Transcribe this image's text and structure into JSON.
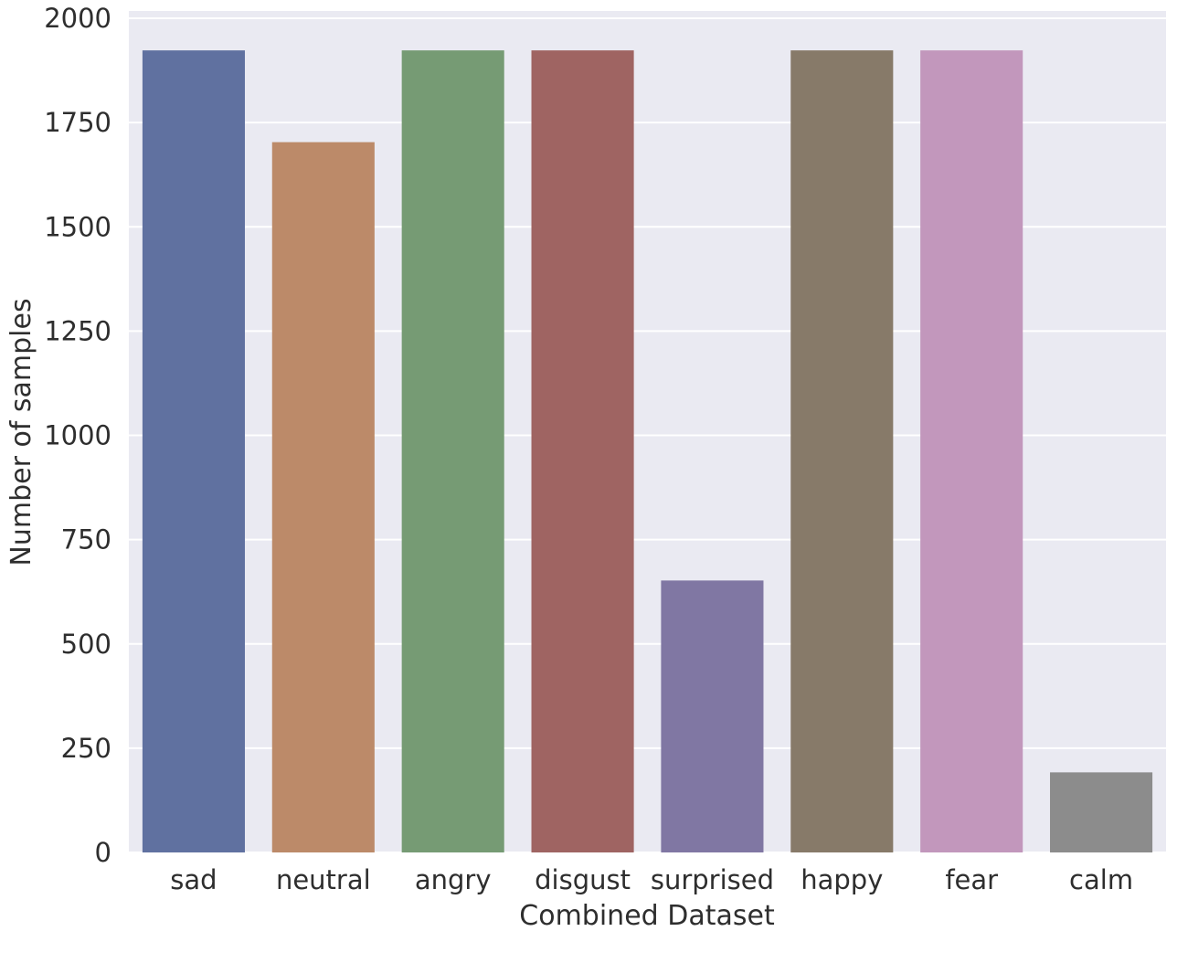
{
  "chart_data": {
    "type": "bar",
    "title": "",
    "xlabel": "Combined Dataset",
    "ylabel": "Number of samples",
    "categories": [
      "sad",
      "neutral",
      "angry",
      "disgust",
      "surprised",
      "happy",
      "fear",
      "calm"
    ],
    "values": [
      1923,
      1703,
      1923,
      1923,
      652,
      1923,
      1923,
      192
    ],
    "colors": [
      "#6071a0",
      "#bc8a69",
      "#769b74",
      "#9f6462",
      "#8077a3",
      "#877a69",
      "#c297bc",
      "#8c8c8c"
    ],
    "ylim": [
      0,
      2000
    ],
    "yticks": [
      0,
      250,
      500,
      750,
      1000,
      1250,
      1500,
      1750,
      2000
    ],
    "grid": true,
    "background": "#eaeaf2",
    "grid_color": "#ffffff"
  }
}
